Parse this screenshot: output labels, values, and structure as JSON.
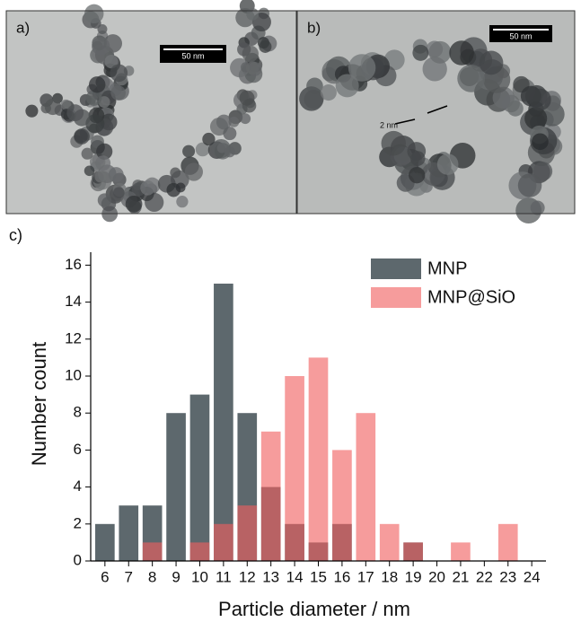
{
  "panels": {
    "a": {
      "label": "a)",
      "scale": "50 nm"
    },
    "b": {
      "label": "b)",
      "scale": "50 nm",
      "annotation": "2 nm"
    },
    "c": {
      "label": "c)"
    }
  },
  "chart_data": {
    "type": "bar",
    "x": [
      6,
      7,
      8,
      9,
      10,
      11,
      12,
      13,
      14,
      15,
      16,
      17,
      18,
      19,
      20,
      21,
      22,
      23,
      24
    ],
    "series": [
      {
        "name": "MNP",
        "color": "#5d686d",
        "values": [
          2,
          3,
          3,
          8,
          9,
          15,
          8,
          4,
          2,
          1,
          2,
          0,
          0,
          1,
          0,
          0,
          0,
          0,
          0
        ]
      },
      {
        "name": "MNP@SiO",
        "color": "#f0605f",
        "values": [
          0,
          0,
          1,
          0,
          1,
          2,
          3,
          7,
          10,
          11,
          6,
          8,
          2,
          1,
          0,
          1,
          0,
          2,
          0
        ]
      }
    ],
    "xlabel": "Particle diameter / nm",
    "ylabel": "Number count",
    "xlim": [
      5.4,
      24.6
    ],
    "ylim": [
      0,
      16.7
    ],
    "xticks": [
      6,
      7,
      8,
      9,
      10,
      11,
      12,
      13,
      14,
      15,
      16,
      17,
      18,
      19,
      20,
      21,
      22,
      23,
      24
    ],
    "yticks": [
      0,
      2,
      4,
      6,
      8,
      10,
      12,
      14,
      16
    ],
    "legend": "top-right"
  }
}
